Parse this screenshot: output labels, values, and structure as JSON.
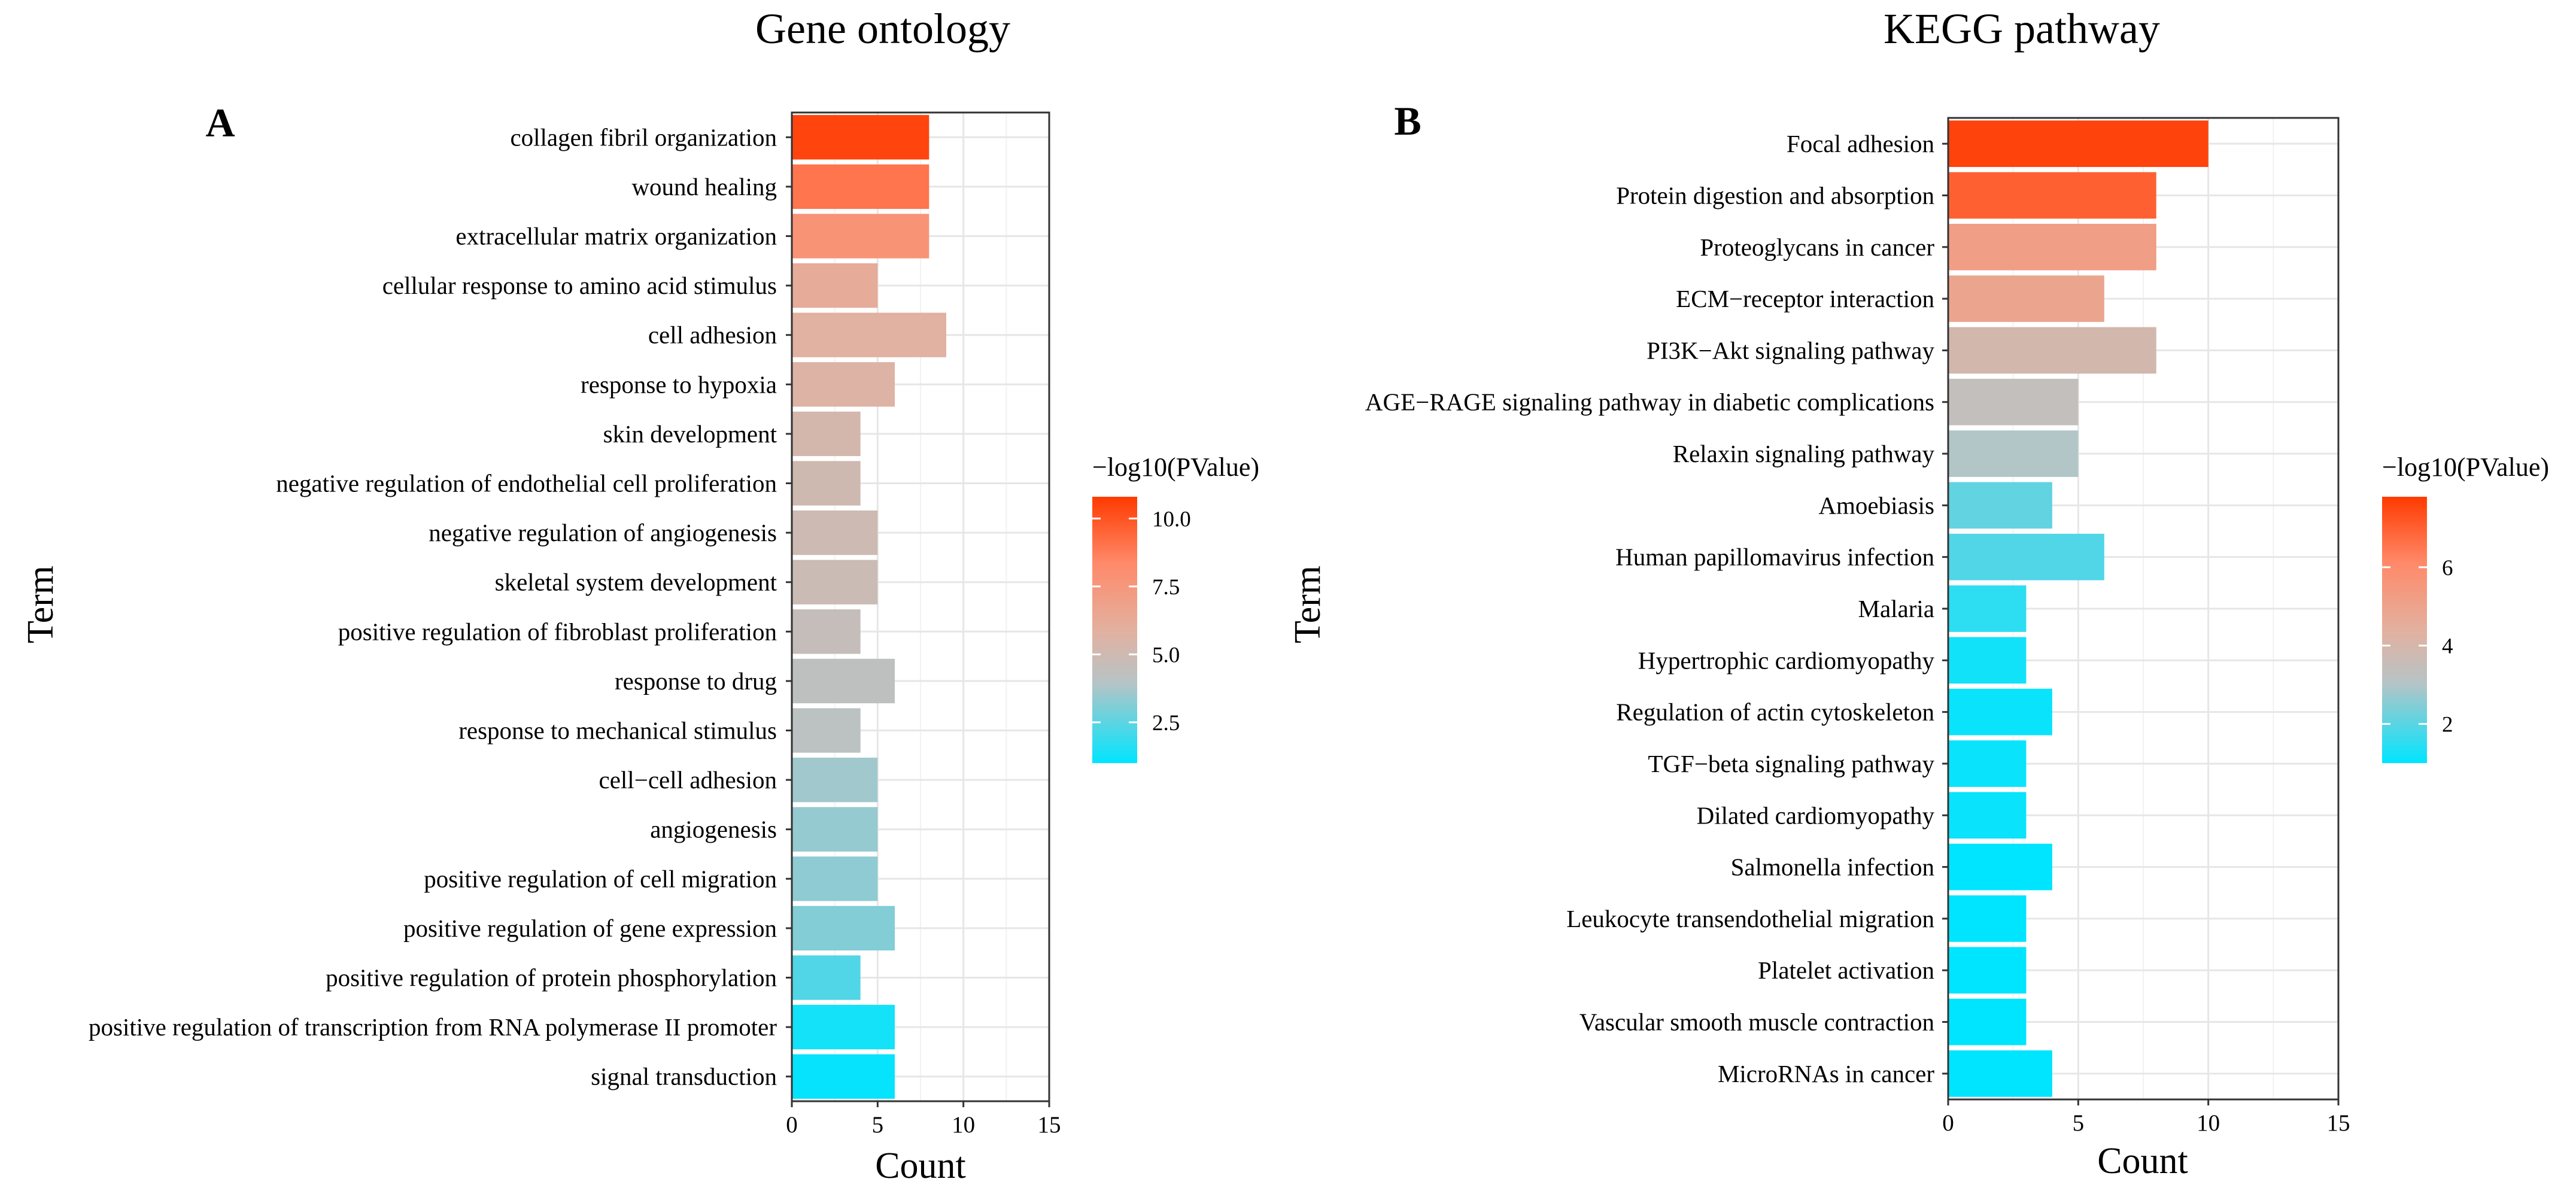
{
  "chart_data": [
    {
      "type": "bar",
      "orientation": "horizontal",
      "title": "Gene ontology",
      "panel": "A",
      "xlabel": "Count",
      "ylabel": "Term",
      "xlim": [
        0,
        15
      ],
      "xticks": [
        "0",
        "5",
        "10",
        "15"
      ],
      "grid": true,
      "legend": {
        "title": "−log10(PValue)",
        "placement": "right",
        "range": [
          1.0,
          10.8
        ],
        "ticks": [
          {
            "value": 10.0,
            "label": "10.0"
          },
          {
            "value": 7.5,
            "label": "7.5"
          },
          {
            "value": 5.0,
            "label": "5.0"
          },
          {
            "value": 2.5,
            "label": "2.5"
          }
        ]
      },
      "categories": [
        "collagen fibril organization",
        "wound healing",
        "extracellular matrix organization",
        "cellular response to amino acid stimulus",
        "cell adhesion",
        "response to hypoxia",
        "skin development",
        "negative regulation of endothelial cell proliferation",
        "negative regulation of angiogenesis",
        "skeletal system development",
        "positive regulation of fibroblast proliferation",
        "response to drug",
        "response to mechanical stimulus",
        "cell−cell adhesion",
        "angiogenesis",
        "positive regulation of cell migration",
        "positive regulation of gene expression",
        "positive regulation of protein phosphorylation",
        "positive regulation of transcription from RNA polymerase II promoter",
        "signal transduction"
      ],
      "values": [
        8,
        8,
        8,
        5,
        9,
        6,
        4,
        4,
        5,
        5,
        4,
        6,
        4,
        5,
        5,
        5,
        6,
        4,
        6,
        6
      ],
      "color_values": [
        10.5,
        9.0,
        7.8,
        6.2,
        5.8,
        5.6,
        5.2,
        5.0,
        4.9,
        4.8,
        4.6,
        4.3,
        4.2,
        3.6,
        3.4,
        3.3,
        3.1,
        2.3,
        1.3,
        1.1
      ]
    },
    {
      "type": "bar",
      "orientation": "horizontal",
      "title": "KEGG pathway",
      "panel": "B",
      "xlabel": "Count",
      "ylabel": "Term",
      "xlim": [
        0,
        15
      ],
      "xticks": [
        "0",
        "5",
        "10",
        "15"
      ],
      "grid": true,
      "legend": {
        "title": "−log10(PValue)",
        "placement": "right",
        "range": [
          1.0,
          7.8
        ],
        "ticks": [
          {
            "value": 6,
            "label": "6"
          },
          {
            "value": 4,
            "label": "4"
          },
          {
            "value": 2,
            "label": "2"
          }
        ]
      },
      "categories": [
        "Focal adhesion",
        "Protein digestion and absorption",
        "Proteoglycans in cancer",
        "ECM−receptor interaction",
        "PI3K−Akt signaling pathway",
        "AGE−RAGE signaling pathway in diabetic complications",
        "Relaxin signaling pathway",
        "Amoebiasis",
        "Human papillomavirus infection",
        "Malaria",
        "Hypertrophic cardiomyopathy",
        "Regulation of actin cytoskeleton",
        "TGF−beta signaling pathway",
        "Dilated cardiomyopathy",
        "Salmonella infection",
        "Leukocyte transendothelial migration",
        "Platelet activation",
        "Vascular smooth muscle contraction",
        "MicroRNAs in cancer"
      ],
      "values": [
        10,
        8,
        8,
        6,
        8,
        5,
        5,
        4,
        6,
        3,
        3,
        4,
        3,
        3,
        4,
        3,
        3,
        3,
        4
      ],
      "color_values": [
        7.6,
        7.0,
        5.2,
        4.9,
        3.9,
        3.4,
        3.0,
        2.1,
        1.9,
        1.5,
        1.2,
        1.1,
        1.1,
        1.1,
        1.0,
        1.0,
        1.0,
        1.0,
        1.0
      ]
    }
  ]
}
